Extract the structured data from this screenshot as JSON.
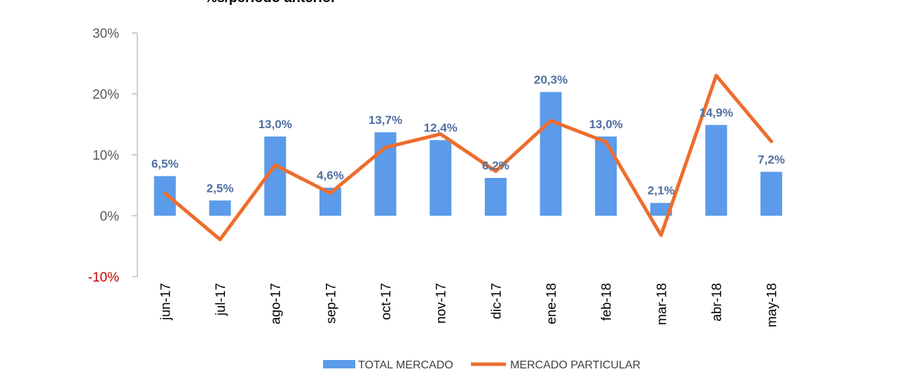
{
  "chart_data": {
    "type": "bar",
    "title": "%s/período anterior",
    "categories": [
      "jun-17",
      "jul-17",
      "ago-17",
      "sep-17",
      "oct-17",
      "nov-17",
      "dic-17",
      "ene-18",
      "feb-18",
      "mar-18",
      "abr-18",
      "may-18"
    ],
    "series": [
      {
        "name": "TOTAL MERCADO",
        "type": "bar",
        "color": "#5b9bea",
        "values": [
          6.5,
          2.5,
          13.0,
          4.6,
          13.7,
          12.4,
          6.2,
          20.3,
          13.0,
          2.1,
          14.9,
          7.2
        ],
        "labels": [
          "6,5%",
          "2,5%",
          "13,0%",
          "4,6%",
          "13,7%",
          "12,4%",
          "6,2%",
          "20,3%",
          "13,0%",
          "2,1%",
          "14,9%",
          "7,2%"
        ]
      },
      {
        "name": "MERCADO PARTICULAR",
        "type": "line",
        "color": "#ed6d2e",
        "values": [
          3.7,
          -3.9,
          8.3,
          3.7,
          11.2,
          13.4,
          7.3,
          15.6,
          12.1,
          -3.2,
          23.0,
          12.2
        ]
      }
    ],
    "yticks": [
      "30%",
      "20%",
      "10%",
      "0%",
      "-10%"
    ],
    "ytick_values": [
      30,
      20,
      10,
      0,
      -10
    ],
    "ylim": [
      -10,
      30
    ],
    "legend_position": "bottom",
    "negative_tick_color": "#c00000"
  }
}
